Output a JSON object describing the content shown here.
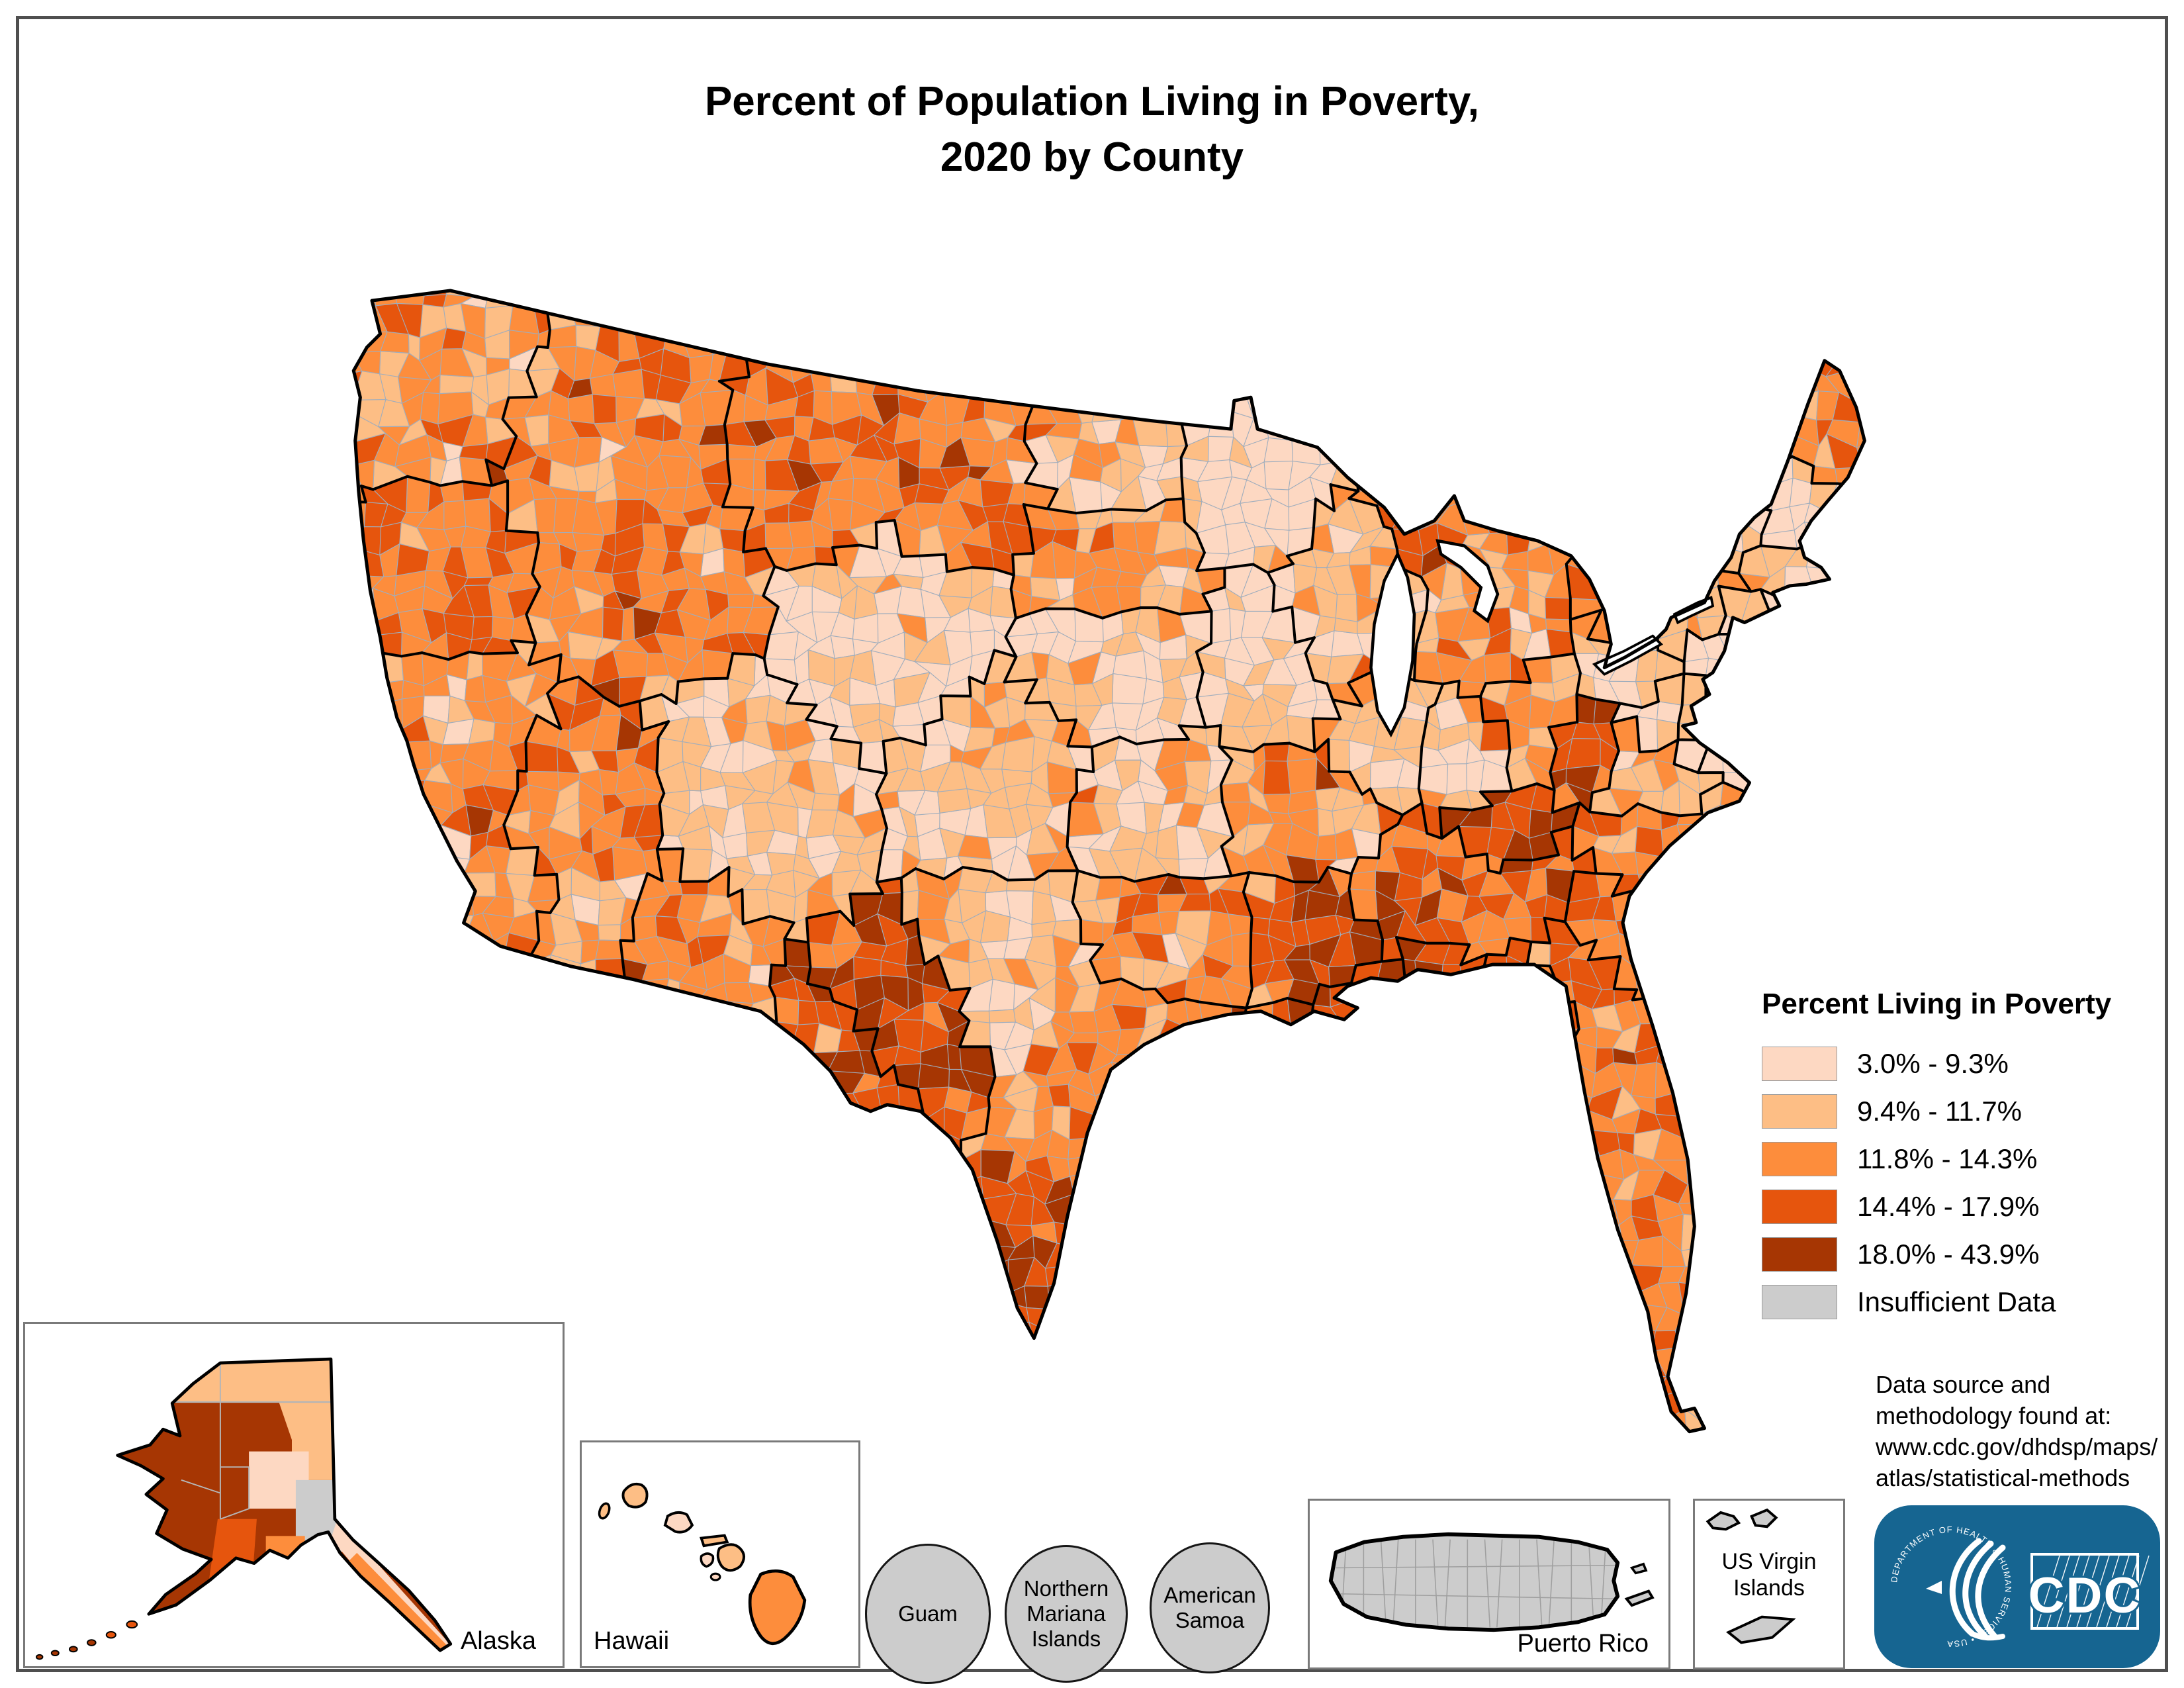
{
  "page": {
    "title_line1": "Percent of Population Living in Poverty,",
    "title_line2": "2020 by County"
  },
  "legend": {
    "title": "Percent Living in Poverty",
    "classes": [
      {
        "label": "3.0% - 9.3%",
        "color": "#fdd8c2"
      },
      {
        "label": "9.4% - 11.7%",
        "color": "#fdbe85"
      },
      {
        "label": "11.8% - 14.3%",
        "color": "#fd8d3c"
      },
      {
        "label": "14.4% - 17.9%",
        "color": "#e6550d"
      },
      {
        "label": "18.0% - 43.9%",
        "color": "#a63603"
      },
      {
        "label": "Insufficient Data",
        "color": "#cccccc"
      }
    ]
  },
  "source_note": {
    "line1": "Data source and",
    "line2": "methodology found at:",
    "line3": "www.cdc.gov/dhdsp/maps/",
    "line4": "atlas/statistical-methods"
  },
  "insets": {
    "alaska_label": "Alaska",
    "hawaii_label": "Hawaii",
    "guam_label": "Guam",
    "northern_mariana_label": "Northern Mariana Islands",
    "american_samoa_label": "American Samoa",
    "puerto_rico_label": "Puerto Rico",
    "us_virgin_islands_label": "US Virgin Islands"
  },
  "logo": {
    "agency_acronym": "CDC",
    "ring_text": "DEPARTMENT OF HEALTH & HUMAN SERVICES • USA",
    "brand_color": "#166591"
  },
  "map_data": {
    "type": "choropleth",
    "geography": "United States counties",
    "year": "2020",
    "metric": "Percent of population living in poverty",
    "class_breaks": [
      "3.0% - 9.3%",
      "9.4% - 11.7%",
      "11.8% - 14.3%",
      "14.4% - 17.9%",
      "18.0% - 43.9%",
      "Insufficient Data"
    ],
    "insufficient_data_areas": [
      "Puerto Rico",
      "Guam",
      "Northern Mariana Islands",
      "American Samoa",
      "US Virgin Islands"
    ],
    "state_patterns": [
      {
        "state": "Washington",
        "level": "medium"
      },
      {
        "state": "Oregon",
        "level": "medium-high"
      },
      {
        "state": "California",
        "level": "medium"
      },
      {
        "state": "Nevada",
        "level": "medium-high"
      },
      {
        "state": "Idaho",
        "level": "medium-high"
      },
      {
        "state": "Montana",
        "level": "medium-high"
      },
      {
        "state": "Wyoming",
        "level": "low"
      },
      {
        "state": "Utah",
        "level": "medium-low"
      },
      {
        "state": "Colorado",
        "level": "medium-low"
      },
      {
        "state": "Arizona",
        "level": "medium-high"
      },
      {
        "state": "New Mexico",
        "level": "high"
      },
      {
        "state": "North Dakota",
        "level": "medium-low"
      },
      {
        "state": "South Dakota",
        "level": "medium"
      },
      {
        "state": "Nebraska",
        "level": "low"
      },
      {
        "state": "Kansas",
        "level": "medium-low"
      },
      {
        "state": "Oklahoma",
        "level": "medium-high"
      },
      {
        "state": "Texas",
        "level": "medium-high"
      },
      {
        "state": "Minnesota",
        "level": "low"
      },
      {
        "state": "Iowa",
        "level": "low"
      },
      {
        "state": "Missouri",
        "level": "medium"
      },
      {
        "state": "Arkansas",
        "level": "high"
      },
      {
        "state": "Louisiana",
        "level": "high"
      },
      {
        "state": "Wisconsin",
        "level": "medium-low"
      },
      {
        "state": "Illinois",
        "level": "medium-low"
      },
      {
        "state": "Michigan",
        "level": "medium"
      },
      {
        "state": "Indiana",
        "level": "medium-low"
      },
      {
        "state": "Ohio",
        "level": "medium"
      },
      {
        "state": "Kentucky",
        "level": "high"
      },
      {
        "state": "Tennessee",
        "level": "medium-high"
      },
      {
        "state": "Mississippi",
        "level": "high"
      },
      {
        "state": "Alabama",
        "level": "high"
      },
      {
        "state": "Georgia",
        "level": "high"
      },
      {
        "state": "Florida",
        "level": "medium-high"
      },
      {
        "state": "South Carolina",
        "level": "medium-high"
      },
      {
        "state": "North Carolina",
        "level": "medium-high"
      },
      {
        "state": "Virginia",
        "level": "medium"
      },
      {
        "state": "West Virginia",
        "level": "high"
      },
      {
        "state": "Maryland",
        "level": "low"
      },
      {
        "state": "Delaware",
        "level": "medium-low"
      },
      {
        "state": "New Jersey",
        "level": "low"
      },
      {
        "state": "Pennsylvania",
        "level": "medium-low"
      },
      {
        "state": "New York",
        "level": "medium"
      },
      {
        "state": "Connecticut",
        "level": "low"
      },
      {
        "state": "Rhode Island",
        "level": "medium-low"
      },
      {
        "state": "Massachusetts",
        "level": "medium-low"
      },
      {
        "state": "Vermont",
        "level": "medium-low"
      },
      {
        "state": "New Hampshire",
        "level": "low"
      },
      {
        "state": "Maine",
        "level": "medium-high"
      },
      {
        "state": "Alaska",
        "level": "high"
      },
      {
        "state": "Hawaii",
        "level": "medium-low"
      }
    ]
  }
}
